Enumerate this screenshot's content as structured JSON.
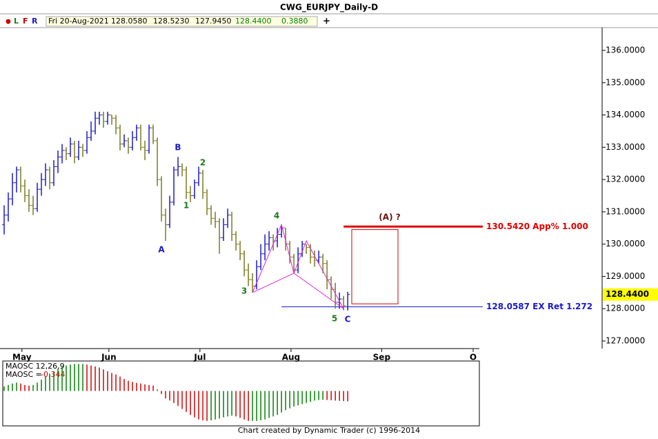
{
  "chart_data": {
    "type": "ohlc",
    "title": "CWG_EURJPY_Daily-D",
    "toolbar": {
      "dot": "●",
      "buttons": [
        "L",
        "F",
        "R"
      ],
      "date": "Fri 20-Aug-2021",
      "open": "128.0580",
      "high": "128.5230",
      "low": "127.9450",
      "close": "128.4400",
      "change": "0.3880",
      "plus": "+"
    },
    "up_color": "#1a1acc",
    "down_color": "#7a7a20",
    "bars": [
      [
        130.6,
        131.2,
        130.3,
        130.9
      ],
      [
        130.9,
        131.6,
        130.7,
        131.4
      ],
      [
        131.4,
        132.2,
        131.2,
        131.9
      ],
      [
        131.9,
        132.4,
        131.6,
        132.3
      ],
      [
        132.3,
        132.4,
        131.6,
        131.8
      ],
      [
        131.8,
        132.0,
        131.3,
        131.5
      ],
      [
        131.5,
        131.7,
        131.0,
        131.2
      ],
      [
        131.2,
        131.5,
        130.9,
        131.1
      ],
      [
        131.1,
        131.9,
        131.0,
        131.7
      ],
      [
        131.7,
        132.2,
        131.5,
        132.0
      ],
      [
        132.0,
        132.5,
        131.8,
        132.3
      ],
      [
        132.3,
        132.4,
        131.7,
        131.9
      ],
      [
        131.9,
        132.6,
        131.8,
        132.4
      ],
      [
        132.4,
        132.9,
        132.2,
        132.7
      ],
      [
        132.7,
        133.1,
        132.5,
        132.9
      ],
      [
        132.9,
        133.0,
        132.6,
        132.8
      ],
      [
        132.8,
        133.3,
        132.7,
        133.1
      ],
      [
        133.1,
        133.2,
        132.5,
        132.7
      ],
      [
        132.7,
        133.2,
        132.6,
        133.0
      ],
      [
        133.0,
        133.1,
        132.7,
        132.9
      ],
      [
        132.9,
        133.5,
        132.8,
        133.3
      ],
      [
        133.3,
        133.8,
        133.2,
        133.5
      ],
      [
        133.5,
        134.1,
        133.4,
        133.9
      ],
      [
        133.9,
        134.1,
        133.7,
        134.0
      ],
      [
        134.0,
        134.1,
        133.6,
        133.8
      ],
      [
        133.8,
        134.1,
        133.7,
        134.0
      ],
      [
        134.0,
        134.0,
        133.7,
        133.9
      ],
      [
        133.9,
        134.0,
        133.4,
        133.6
      ],
      [
        133.6,
        133.7,
        132.9,
        133.1
      ],
      [
        133.1,
        133.4,
        133.0,
        133.2
      ],
      [
        133.2,
        133.3,
        132.8,
        133.0
      ],
      [
        133.0,
        133.5,
        132.9,
        133.3
      ],
      [
        133.3,
        133.7,
        133.2,
        133.6
      ],
      [
        133.6,
        133.7,
        132.9,
        133.0
      ],
      [
        133.0,
        133.2,
        132.6,
        132.9
      ],
      [
        132.9,
        133.7,
        132.8,
        133.6
      ],
      [
        133.6,
        133.7,
        133.1,
        133.2
      ],
      [
        133.2,
        133.3,
        131.8,
        132.0
      ],
      [
        132.0,
        132.1,
        130.7,
        130.9
      ],
      [
        130.9,
        131.1,
        130.1,
        130.6
      ],
      [
        130.6,
        131.5,
        130.5,
        131.3
      ],
      [
        131.3,
        132.4,
        131.2,
        132.3
      ],
      [
        132.3,
        132.7,
        132.1,
        132.4
      ],
      [
        132.4,
        132.5,
        132.1,
        132.3
      ],
      [
        132.3,
        132.4,
        131.4,
        131.6
      ],
      [
        131.6,
        131.8,
        131.3,
        131.5
      ],
      [
        131.5,
        132.0,
        131.4,
        131.9
      ],
      [
        131.9,
        132.4,
        131.8,
        132.2
      ],
      [
        132.2,
        132.3,
        131.4,
        131.6
      ],
      [
        131.6,
        131.7,
        130.9,
        131.1
      ],
      [
        131.1,
        131.2,
        130.6,
        130.8
      ],
      [
        130.8,
        131.0,
        130.5,
        130.7
      ],
      [
        130.7,
        130.8,
        129.7,
        130.2
      ],
      [
        130.2,
        130.8,
        130.1,
        130.6
      ],
      [
        130.6,
        131.1,
        130.5,
        130.9
      ],
      [
        130.9,
        131.0,
        130.1,
        130.3
      ],
      [
        130.3,
        130.4,
        129.8,
        130.0
      ],
      [
        130.0,
        130.1,
        129.5,
        129.7
      ],
      [
        129.7,
        129.8,
        129.0,
        129.2
      ],
      [
        129.2,
        129.4,
        128.7,
        128.9
      ],
      [
        128.9,
        129.1,
        128.5,
        128.7
      ],
      [
        128.7,
        129.5,
        128.6,
        129.3
      ],
      [
        129.3,
        130.0,
        129.2,
        129.7
      ],
      [
        129.7,
        130.3,
        129.5,
        130.0
      ],
      [
        130.0,
        130.4,
        129.8,
        130.2
      ],
      [
        130.2,
        130.3,
        129.8,
        130.1
      ],
      [
        130.1,
        130.5,
        129.9,
        130.3
      ],
      [
        130.3,
        130.6,
        130.2,
        130.5
      ],
      [
        130.5,
        130.5,
        129.8,
        130.0
      ],
      [
        130.0,
        130.1,
        129.4,
        129.6
      ],
      [
        129.6,
        129.7,
        129.1,
        129.2
      ],
      [
        129.2,
        129.9,
        129.1,
        129.7
      ],
      [
        129.7,
        130.1,
        129.6,
        130.0
      ],
      [
        130.0,
        130.0,
        129.7,
        129.9
      ],
      [
        129.9,
        130.0,
        129.4,
        129.6
      ],
      [
        129.6,
        129.8,
        129.3,
        129.5
      ],
      [
        129.5,
        129.8,
        129.4,
        129.6
      ],
      [
        129.6,
        129.7,
        129.1,
        129.4
      ],
      [
        129.4,
        129.5,
        128.6,
        128.9
      ],
      [
        128.9,
        129.0,
        128.3,
        128.6
      ],
      [
        128.6,
        128.8,
        128.0,
        128.2
      ],
      [
        128.2,
        128.5,
        128.0,
        128.3
      ],
      [
        128.3,
        128.4,
        127.95,
        128.1
      ],
      [
        128.058,
        128.523,
        127.945,
        128.44
      ]
    ],
    "xlim": [
      -1,
      114.8
    ],
    "xticks": [
      {
        "value": 4.3,
        "label": "May"
      },
      {
        "value": 25.3,
        "label": "Jun"
      },
      {
        "value": 47.3,
        "label": "Jul"
      },
      {
        "value": 69.3,
        "label": "Aug"
      },
      {
        "value": 91.2,
        "label": "Sep"
      },
      {
        "value": 113.3,
        "label": "O"
      }
    ],
    "ylim": [
      126.765,
      136.705
    ],
    "yticks": [
      {
        "value": 136,
        "label": "136.0000"
      },
      {
        "value": 135,
        "label": "135.0000"
      },
      {
        "value": 134,
        "label": "134.0000"
      },
      {
        "value": 133,
        "label": "133.0000"
      },
      {
        "value": 132,
        "label": "132.0000"
      },
      {
        "value": 131,
        "label": "131.0000"
      },
      {
        "value": 130,
        "label": "130.0000"
      },
      {
        "value": 129,
        "label": "129.0000"
      },
      {
        "value": 128,
        "label": "128.0000"
      },
      {
        "value": 127,
        "label": "127.0000"
      }
    ],
    "last_price": {
      "value": 128.44,
      "label": "128.4400"
    },
    "levels": [
      {
        "value": 130.542,
        "label": "130.5420 App% 1.000",
        "color": "#e00000",
        "from": 82
      },
      {
        "value": 128.0587,
        "label": "128.0587 EX Ret 1.272",
        "color": "#1a1acc",
        "from": 67
      }
    ],
    "target_zone": {
      "ylim": [
        128.15,
        130.45
      ],
      "color": "#cc0000"
    },
    "pattern": {
      "x": [
        60,
        67,
        70,
        73,
        82
      ],
      "y": [
        128.5,
        130.6,
        129.1,
        130.1,
        128.0
      ],
      "color": "#e020e0"
    },
    "wave_labels": [
      {
        "text": "A",
        "color": "#1a1acc"
      },
      {
        "text": "B",
        "color": "#1a1acc"
      },
      {
        "text": "1",
        "color": "#1a7a1a"
      },
      {
        "text": "2",
        "color": "#1a7a1a"
      },
      {
        "text": "3",
        "color": "#1a7a1a"
      },
      {
        "text": "4",
        "color": "#1a7a1a"
      },
      {
        "text": "5",
        "color": "#1a7a1a"
      },
      {
        "text": "C",
        "color": "#1a1acc"
      },
      {
        "text": "(A) ?",
        "color": "#6a1010"
      }
    ],
    "oscillator": {
      "title": "MAOSC 12,26,9",
      "readout": "MAOSC =",
      "ylim": [
        -1.05,
        1.0
      ],
      "up_color": "#008000",
      "down_color": "#d00000",
      "values": [
        0.15,
        0.2,
        0.25,
        0.28,
        0.25,
        0.2,
        0.18,
        0.2,
        0.28,
        0.38,
        0.48,
        0.58,
        0.66,
        0.74,
        0.8,
        0.85,
        0.88,
        0.9,
        0.9,
        0.9,
        0.88,
        0.85,
        0.82,
        0.78,
        0.72,
        0.66,
        0.6,
        0.55,
        0.48,
        0.4,
        0.34,
        0.3,
        0.27,
        0.25,
        0.22,
        0.2,
        0.18,
        0.05,
        -0.1,
        -0.25,
        -0.32,
        -0.4,
        -0.5,
        -0.6,
        -0.7,
        -0.8,
        -0.88,
        -0.95,
        -0.98,
        -1.0,
        -0.98,
        -0.95,
        -0.92,
        -0.88,
        -0.85,
        -0.82,
        -0.85,
        -0.9,
        -0.95,
        -1.0,
        -1.0,
        -1.0,
        -0.98,
        -0.95,
        -0.9,
        -0.85,
        -0.8,
        -0.72,
        -0.64,
        -0.58,
        -0.52,
        -0.48,
        -0.44,
        -0.4,
        -0.36,
        -0.32,
        -0.3,
        -0.29,
        -0.3,
        -0.31,
        -0.32,
        -0.33,
        -0.338,
        -0.344
      ]
    },
    "footer": "Chart created by Dynamic Trader  (c) 1996-2014"
  }
}
